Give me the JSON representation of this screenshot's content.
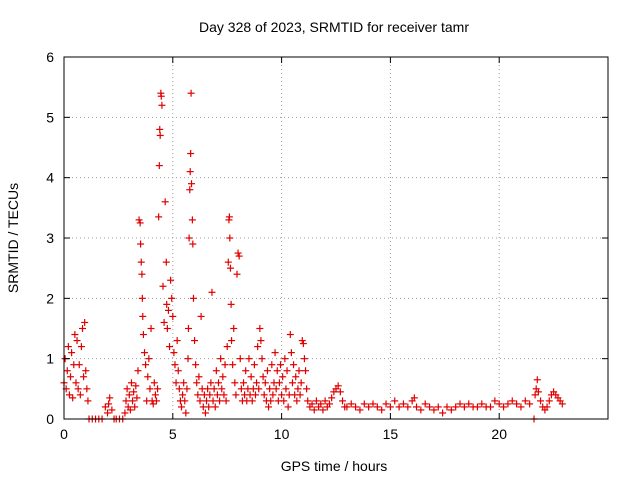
{
  "chart_data": {
    "type": "scatter",
    "title": "Day 328 of 2023, SRMTID for receiver tamr",
    "xlabel": "GPS time / hours",
    "ylabel": "SRMTID / TECUs",
    "xlim": [
      0,
      25
    ],
    "ylim": [
      0,
      6
    ],
    "x_ticks": [
      0,
      5,
      10,
      15,
      20
    ],
    "y_ticks": [
      0,
      1,
      2,
      3,
      4,
      5,
      6
    ],
    "x_tick_labels": [
      "0",
      "5",
      "10",
      "15",
      "20"
    ],
    "y_tick_labels": [
      "0",
      "1",
      "2",
      "3",
      "4",
      "5",
      "6"
    ],
    "grid": true,
    "marker": "+",
    "marker_color": "#e00000",
    "series": [
      {
        "name": "SRMTID",
        "points": [
          [
            0.0,
            0.6
          ],
          [
            0.05,
            1.0
          ],
          [
            0.1,
            0.5
          ],
          [
            0.15,
            0.8
          ],
          [
            0.2,
            1.2
          ],
          [
            0.25,
            0.4
          ],
          [
            0.3,
            0.7
          ],
          [
            0.35,
            1.1
          ],
          [
            0.4,
            0.35
          ],
          [
            0.45,
            0.9
          ],
          [
            0.5,
            1.4
          ],
          [
            0.55,
            0.6
          ],
          [
            0.6,
            1.3
          ],
          [
            0.65,
            0.5
          ],
          [
            0.7,
            0.9
          ],
          [
            0.75,
            0.4
          ],
          [
            0.8,
            1.2
          ],
          [
            0.85,
            1.5
          ],
          [
            0.9,
            0.7
          ],
          [
            0.95,
            1.6
          ],
          [
            1.0,
            0.8
          ],
          [
            1.05,
            0.5
          ],
          [
            1.1,
            0.3
          ],
          [
            1.15,
            0.0
          ],
          [
            1.3,
            0.0
          ],
          [
            1.45,
            0.0
          ],
          [
            1.6,
            0.0
          ],
          [
            1.75,
            0.0
          ],
          [
            1.9,
            0.2
          ],
          [
            2.0,
            0.1
          ],
          [
            2.05,
            0.25
          ],
          [
            2.1,
            0.35
          ],
          [
            2.2,
            0.15
          ],
          [
            2.3,
            0.0
          ],
          [
            2.4,
            0.0
          ],
          [
            2.55,
            0.0
          ],
          [
            2.7,
            0.0
          ],
          [
            2.8,
            0.1
          ],
          [
            2.85,
            0.3
          ],
          [
            2.9,
            0.5
          ],
          [
            2.95,
            0.2
          ],
          [
            3.0,
            0.4
          ],
          [
            3.05,
            0.15
          ],
          [
            3.1,
            0.6
          ],
          [
            3.15,
            0.3
          ],
          [
            3.2,
            0.45
          ],
          [
            3.25,
            0.2
          ],
          [
            3.3,
            0.55
          ],
          [
            3.35,
            0.35
          ],
          [
            3.4,
            0.8
          ],
          [
            3.45,
            3.3
          ],
          [
            3.5,
            3.25
          ],
          [
            3.52,
            2.9
          ],
          [
            3.55,
            2.6
          ],
          [
            3.58,
            2.4
          ],
          [
            3.6,
            2.0
          ],
          [
            3.62,
            1.7
          ],
          [
            3.65,
            1.4
          ],
          [
            3.7,
            1.1
          ],
          [
            3.75,
            0.9
          ],
          [
            3.8,
            0.3
          ],
          [
            3.85,
            0.7
          ],
          [
            3.9,
            1.0
          ],
          [
            3.95,
            0.5
          ],
          [
            4.0,
            1.5
          ],
          [
            4.05,
            0.3
          ],
          [
            4.1,
            0.25
          ],
          [
            4.15,
            0.6
          ],
          [
            4.2,
            0.4
          ],
          [
            4.25,
            0.3
          ],
          [
            4.3,
            0.5
          ],
          [
            4.35,
            3.35
          ],
          [
            4.38,
            4.2
          ],
          [
            4.4,
            4.8
          ],
          [
            4.42,
            4.7
          ],
          [
            4.45,
            5.4
          ],
          [
            4.47,
            5.35
          ],
          [
            4.5,
            5.2
          ],
          [
            4.55,
            2.2
          ],
          [
            4.6,
            1.6
          ],
          [
            4.65,
            3.6
          ],
          [
            4.7,
            2.6
          ],
          [
            4.72,
            1.9
          ],
          [
            4.75,
            1.5
          ],
          [
            4.8,
            1.8
          ],
          [
            4.85,
            1.2
          ],
          [
            4.9,
            2.3
          ],
          [
            4.95,
            2.0
          ],
          [
            5.0,
            1.7
          ],
          [
            5.05,
            1.1
          ],
          [
            5.1,
            0.9
          ],
          [
            5.15,
            0.6
          ],
          [
            5.2,
            1.3
          ],
          [
            5.25,
            0.8
          ],
          [
            5.3,
            0.5
          ],
          [
            5.35,
            0.3
          ],
          [
            5.4,
            0.2
          ],
          [
            5.45,
            0.4
          ],
          [
            5.5,
            0.6
          ],
          [
            5.55,
            0.3
          ],
          [
            5.6,
            0.1
          ],
          [
            5.65,
            0.5
          ],
          [
            5.7,
            1.0
          ],
          [
            5.72,
            1.5
          ],
          [
            5.75,
            3.0
          ],
          [
            5.78,
            3.8
          ],
          [
            5.8,
            4.1
          ],
          [
            5.82,
            4.4
          ],
          [
            5.84,
            5.4
          ],
          [
            5.86,
            3.9
          ],
          [
            5.9,
            3.3
          ],
          [
            5.92,
            2.9
          ],
          [
            5.95,
            2.0
          ],
          [
            6.0,
            1.3
          ],
          [
            6.05,
            0.9
          ],
          [
            6.1,
            0.6
          ],
          [
            6.15,
            0.4
          ],
          [
            6.2,
            0.7
          ],
          [
            6.25,
            0.3
          ],
          [
            6.3,
            1.7
          ],
          [
            6.35,
            0.5
          ],
          [
            6.4,
            0.2
          ],
          [
            6.45,
            0.4
          ],
          [
            6.5,
            0.1
          ],
          [
            6.55,
            0.3
          ],
          [
            6.6,
            0.5
          ],
          [
            6.65,
            0.2
          ],
          [
            6.7,
            0.4
          ],
          [
            6.75,
            0.6
          ],
          [
            6.8,
            2.1
          ],
          [
            6.85,
            0.3
          ],
          [
            6.9,
            0.5
          ],
          [
            6.95,
            0.2
          ],
          [
            7.0,
            0.8
          ],
          [
            7.05,
            0.4
          ],
          [
            7.1,
            0.6
          ],
          [
            7.15,
            0.3
          ],
          [
            7.2,
            1.0
          ],
          [
            7.25,
            0.5
          ],
          [
            7.3,
            0.7
          ],
          [
            7.35,
            0.4
          ],
          [
            7.4,
            0.9
          ],
          [
            7.45,
            0.3
          ],
          [
            7.5,
            1.2
          ],
          [
            7.55,
            2.6
          ],
          [
            7.58,
            3.3
          ],
          [
            7.6,
            3.35
          ],
          [
            7.62,
            3.0
          ],
          [
            7.65,
            2.5
          ],
          [
            7.68,
            1.9
          ],
          [
            7.7,
            1.3
          ],
          [
            7.75,
            0.9
          ],
          [
            7.8,
            1.5
          ],
          [
            7.85,
            0.6
          ],
          [
            7.9,
            0.4
          ],
          [
            7.95,
            2.4
          ],
          [
            8.0,
            2.75
          ],
          [
            8.05,
            2.7
          ],
          [
            8.1,
            1.0
          ],
          [
            8.15,
            0.5
          ],
          [
            8.2,
            0.3
          ],
          [
            8.25,
            0.6
          ],
          [
            8.3,
            0.4
          ],
          [
            8.35,
            0.8
          ],
          [
            8.4,
            0.3
          ],
          [
            8.45,
            0.5
          ],
          [
            8.5,
            1.0
          ],
          [
            8.55,
            0.4
          ],
          [
            8.6,
            0.7
          ],
          [
            8.65,
            0.3
          ],
          [
            8.7,
            0.5
          ],
          [
            8.75,
            0.9
          ],
          [
            8.8,
            0.4
          ],
          [
            8.85,
            0.6
          ],
          [
            8.9,
            1.2
          ],
          [
            8.95,
            0.5
          ],
          [
            9.0,
            1.5
          ],
          [
            9.05,
            1.3
          ],
          [
            9.1,
            1.0
          ],
          [
            9.15,
            0.7
          ],
          [
            9.2,
            0.4
          ],
          [
            9.25,
            0.6
          ],
          [
            9.3,
            0.3
          ],
          [
            9.35,
            0.8
          ],
          [
            9.4,
            0.2
          ],
          [
            9.45,
            0.5
          ],
          [
            9.5,
            0.3
          ],
          [
            9.55,
            0.9
          ],
          [
            9.6,
            0.4
          ],
          [
            9.65,
            0.6
          ],
          [
            9.7,
            1.1
          ],
          [
            9.75,
            0.5
          ],
          [
            9.8,
            0.8
          ],
          [
            9.85,
            0.3
          ],
          [
            9.9,
            0.6
          ],
          [
            9.95,
            0.9
          ],
          [
            10.0,
            0.4
          ],
          [
            10.05,
            0.7
          ],
          [
            10.1,
            0.3
          ],
          [
            10.15,
            1.0
          ],
          [
            10.2,
            0.5
          ],
          [
            10.25,
            0.8
          ],
          [
            10.3,
            0.2
          ],
          [
            10.35,
            0.4
          ],
          [
            10.4,
            1.4
          ],
          [
            10.45,
            1.1
          ],
          [
            10.5,
            0.6
          ],
          [
            10.55,
            0.9
          ],
          [
            10.6,
            0.4
          ],
          [
            10.65,
            0.7
          ],
          [
            10.7,
            0.3
          ],
          [
            10.75,
            0.5
          ],
          [
            10.8,
            0.8
          ],
          [
            10.85,
            0.4
          ],
          [
            10.9,
            0.6
          ],
          [
            10.95,
            1.3
          ],
          [
            11.0,
            1.25
          ],
          [
            11.05,
            1.0
          ],
          [
            11.1,
            0.8
          ],
          [
            11.15,
            0.5
          ],
          [
            11.2,
            0.3
          ],
          [
            11.3,
            0.2
          ],
          [
            11.4,
            0.25
          ],
          [
            11.5,
            0.15
          ],
          [
            11.6,
            0.3
          ],
          [
            11.7,
            0.2
          ],
          [
            11.8,
            0.25
          ],
          [
            11.9,
            0.15
          ],
          [
            12.0,
            0.3
          ],
          [
            12.1,
            0.2
          ],
          [
            12.2,
            0.25
          ],
          [
            12.3,
            0.35
          ],
          [
            12.4,
            0.45
          ],
          [
            12.5,
            0.5
          ],
          [
            12.6,
            0.55
          ],
          [
            12.7,
            0.45
          ],
          [
            12.8,
            0.3
          ],
          [
            12.9,
            0.2
          ],
          [
            13.0,
            0.2
          ],
          [
            13.2,
            0.25
          ],
          [
            13.4,
            0.2
          ],
          [
            13.6,
            0.15
          ],
          [
            13.8,
            0.25
          ],
          [
            14.0,
            0.2
          ],
          [
            14.2,
            0.25
          ],
          [
            14.4,
            0.2
          ],
          [
            14.6,
            0.15
          ],
          [
            14.8,
            0.25
          ],
          [
            15.0,
            0.2
          ],
          [
            15.2,
            0.3
          ],
          [
            15.4,
            0.2
          ],
          [
            15.6,
            0.25
          ],
          [
            15.8,
            0.2
          ],
          [
            16.0,
            0.3
          ],
          [
            16.1,
            0.35
          ],
          [
            16.2,
            0.2
          ],
          [
            16.4,
            0.15
          ],
          [
            16.6,
            0.25
          ],
          [
            16.8,
            0.2
          ],
          [
            17.0,
            0.15
          ],
          [
            17.2,
            0.2
          ],
          [
            17.4,
            0.1
          ],
          [
            17.6,
            0.2
          ],
          [
            17.8,
            0.15
          ],
          [
            18.0,
            0.2
          ],
          [
            18.2,
            0.25
          ],
          [
            18.4,
            0.2
          ],
          [
            18.6,
            0.25
          ],
          [
            18.8,
            0.2
          ],
          [
            19.0,
            0.2
          ],
          [
            19.2,
            0.25
          ],
          [
            19.4,
            0.2
          ],
          [
            19.6,
            0.2
          ],
          [
            19.8,
            0.3
          ],
          [
            20.0,
            0.25
          ],
          [
            20.2,
            0.2
          ],
          [
            20.4,
            0.25
          ],
          [
            20.6,
            0.3
          ],
          [
            20.8,
            0.25
          ],
          [
            21.0,
            0.2
          ],
          [
            21.2,
            0.3
          ],
          [
            21.4,
            0.25
          ],
          [
            21.6,
            0.0
          ],
          [
            21.65,
            0.4
          ],
          [
            21.7,
            0.5
          ],
          [
            21.75,
            0.65
          ],
          [
            21.8,
            0.45
          ],
          [
            21.9,
            0.3
          ],
          [
            22.0,
            0.2
          ],
          [
            22.1,
            0.15
          ],
          [
            22.2,
            0.2
          ],
          [
            22.3,
            0.3
          ],
          [
            22.4,
            0.4
          ],
          [
            22.5,
            0.45
          ],
          [
            22.6,
            0.4
          ],
          [
            22.7,
            0.35
          ],
          [
            22.8,
            0.3
          ],
          [
            22.9,
            0.25
          ]
        ]
      }
    ]
  }
}
